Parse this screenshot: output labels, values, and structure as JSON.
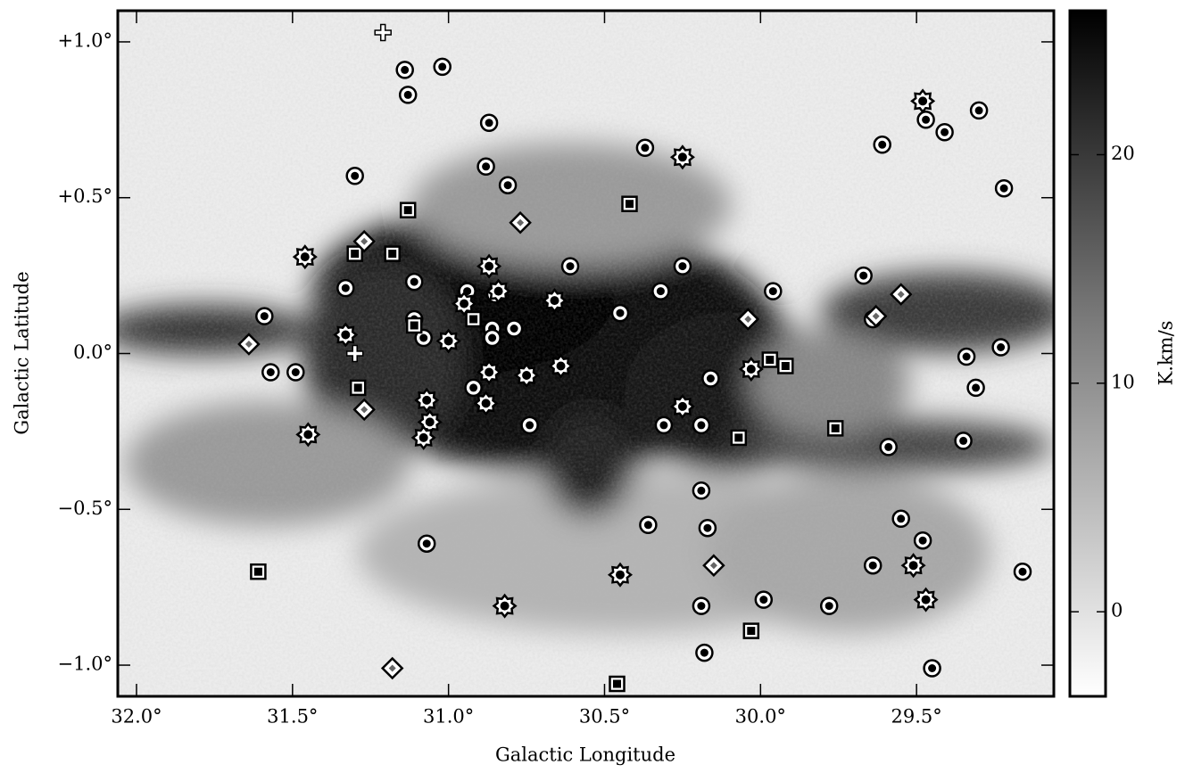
{
  "chart_data": {
    "type": "scatter",
    "x_label": "Galactic Longitude",
    "y_label": "Galactic Latitude",
    "xlim": [
      32.06,
      29.06
    ],
    "ylim": [
      -1.1,
      1.1
    ],
    "xticks": [
      {
        "value": 32.0,
        "label": "32.0°"
      },
      {
        "value": 31.5,
        "label": "31.5°"
      },
      {
        "value": 31.0,
        "label": "31.0°"
      },
      {
        "value": 30.5,
        "label": "30.5°"
      },
      {
        "value": 30.0,
        "label": "30.0°"
      },
      {
        "value": 29.5,
        "label": "29.5°"
      }
    ],
    "yticks": [
      {
        "value": 1.0,
        "label": "+1.0°"
      },
      {
        "value": 0.5,
        "label": "+0.5°"
      },
      {
        "value": 0.0,
        "label": "0.0°"
      },
      {
        "value": -0.5,
        "label": "−0.5°"
      },
      {
        "value": -1.0,
        "label": "−1.0°"
      }
    ],
    "colorbar": {
      "label": "K.km/s",
      "lim": [
        -3.7,
        26.3
      ],
      "ticks": [
        0,
        10,
        20
      ]
    },
    "marker_fill": "#ffffff",
    "marker_edge": "#000000",
    "series": [
      {
        "marker": "circle",
        "x": [
          31.14,
          31.02,
          31.13,
          30.87,
          31.3,
          30.88,
          30.81,
          30.37,
          29.61,
          29.47,
          29.41,
          29.3,
          29.22,
          30.61,
          30.25,
          31.11,
          31.33,
          30.94,
          30.85,
          30.32,
          29.96,
          29.67,
          31.59,
          31.11,
          30.45,
          30.86,
          30.79,
          30.86,
          31.08,
          31.57,
          31.49,
          30.16,
          30.92,
          30.74,
          30.31,
          30.19,
          29.59,
          29.35,
          29.34,
          29.31,
          29.23,
          30.19,
          30.36,
          30.17,
          29.55,
          29.48,
          31.07,
          29.64,
          30.19,
          29.78,
          29.99,
          30.18,
          29.45,
          29.16,
          29.64
        ],
        "y": [
          0.91,
          0.92,
          0.83,
          0.74,
          0.57,
          0.6,
          0.54,
          0.66,
          0.67,
          0.75,
          0.71,
          0.78,
          0.53,
          0.28,
          0.28,
          0.23,
          0.21,
          0.2,
          0.19,
          0.2,
          0.2,
          0.25,
          0.12,
          0.11,
          0.13,
          0.08,
          0.08,
          0.05,
          0.05,
          -0.06,
          -0.06,
          -0.08,
          -0.11,
          -0.23,
          -0.23,
          -0.23,
          -0.3,
          -0.28,
          -0.01,
          -0.11,
          0.02,
          -0.44,
          -0.55,
          -0.56,
          -0.53,
          -0.6,
          -0.61,
          -0.68,
          -0.81,
          -0.81,
          -0.79,
          -0.96,
          -1.01,
          -0.7,
          0.11
        ]
      },
      {
        "marker": "star",
        "x": [
          29.48,
          30.25,
          31.46,
          30.87,
          30.84,
          30.95,
          30.66,
          31.33,
          31.0,
          30.87,
          30.75,
          30.64,
          30.03,
          31.07,
          30.88,
          30.25,
          31.06,
          31.08,
          31.45,
          30.45,
          30.82,
          29.51,
          29.47
        ],
        "y": [
          0.81,
          0.63,
          0.31,
          0.28,
          0.2,
          0.16,
          0.17,
          0.06,
          0.04,
          -0.06,
          -0.07,
          -0.04,
          -0.05,
          -0.15,
          -0.16,
          -0.17,
          -0.22,
          -0.27,
          -0.26,
          -0.71,
          -0.81,
          -0.68,
          -0.79
        ]
      },
      {
        "marker": "square",
        "x": [
          31.13,
          30.42,
          31.3,
          31.18,
          30.92,
          31.11,
          31.29,
          29.97,
          29.92,
          30.07,
          29.76,
          31.61,
          30.03,
          30.46
        ],
        "y": [
          0.46,
          0.48,
          0.32,
          0.32,
          0.11,
          0.09,
          -0.11,
          -0.02,
          -0.04,
          -0.27,
          -0.24,
          -0.7,
          -0.89,
          -1.06
        ]
      },
      {
        "marker": "diamond",
        "x": [
          30.77,
          31.27,
          31.64,
          31.27,
          30.04,
          29.63,
          29.55,
          30.15,
          31.18
        ],
        "y": [
          0.42,
          0.36,
          0.03,
          -0.18,
          0.11,
          0.12,
          0.19,
          -0.68,
          -1.01
        ]
      },
      {
        "marker": "plus",
        "x": [
          31.21,
          31.3
        ],
        "y": [
          1.03,
          0.0
        ]
      }
    ]
  }
}
